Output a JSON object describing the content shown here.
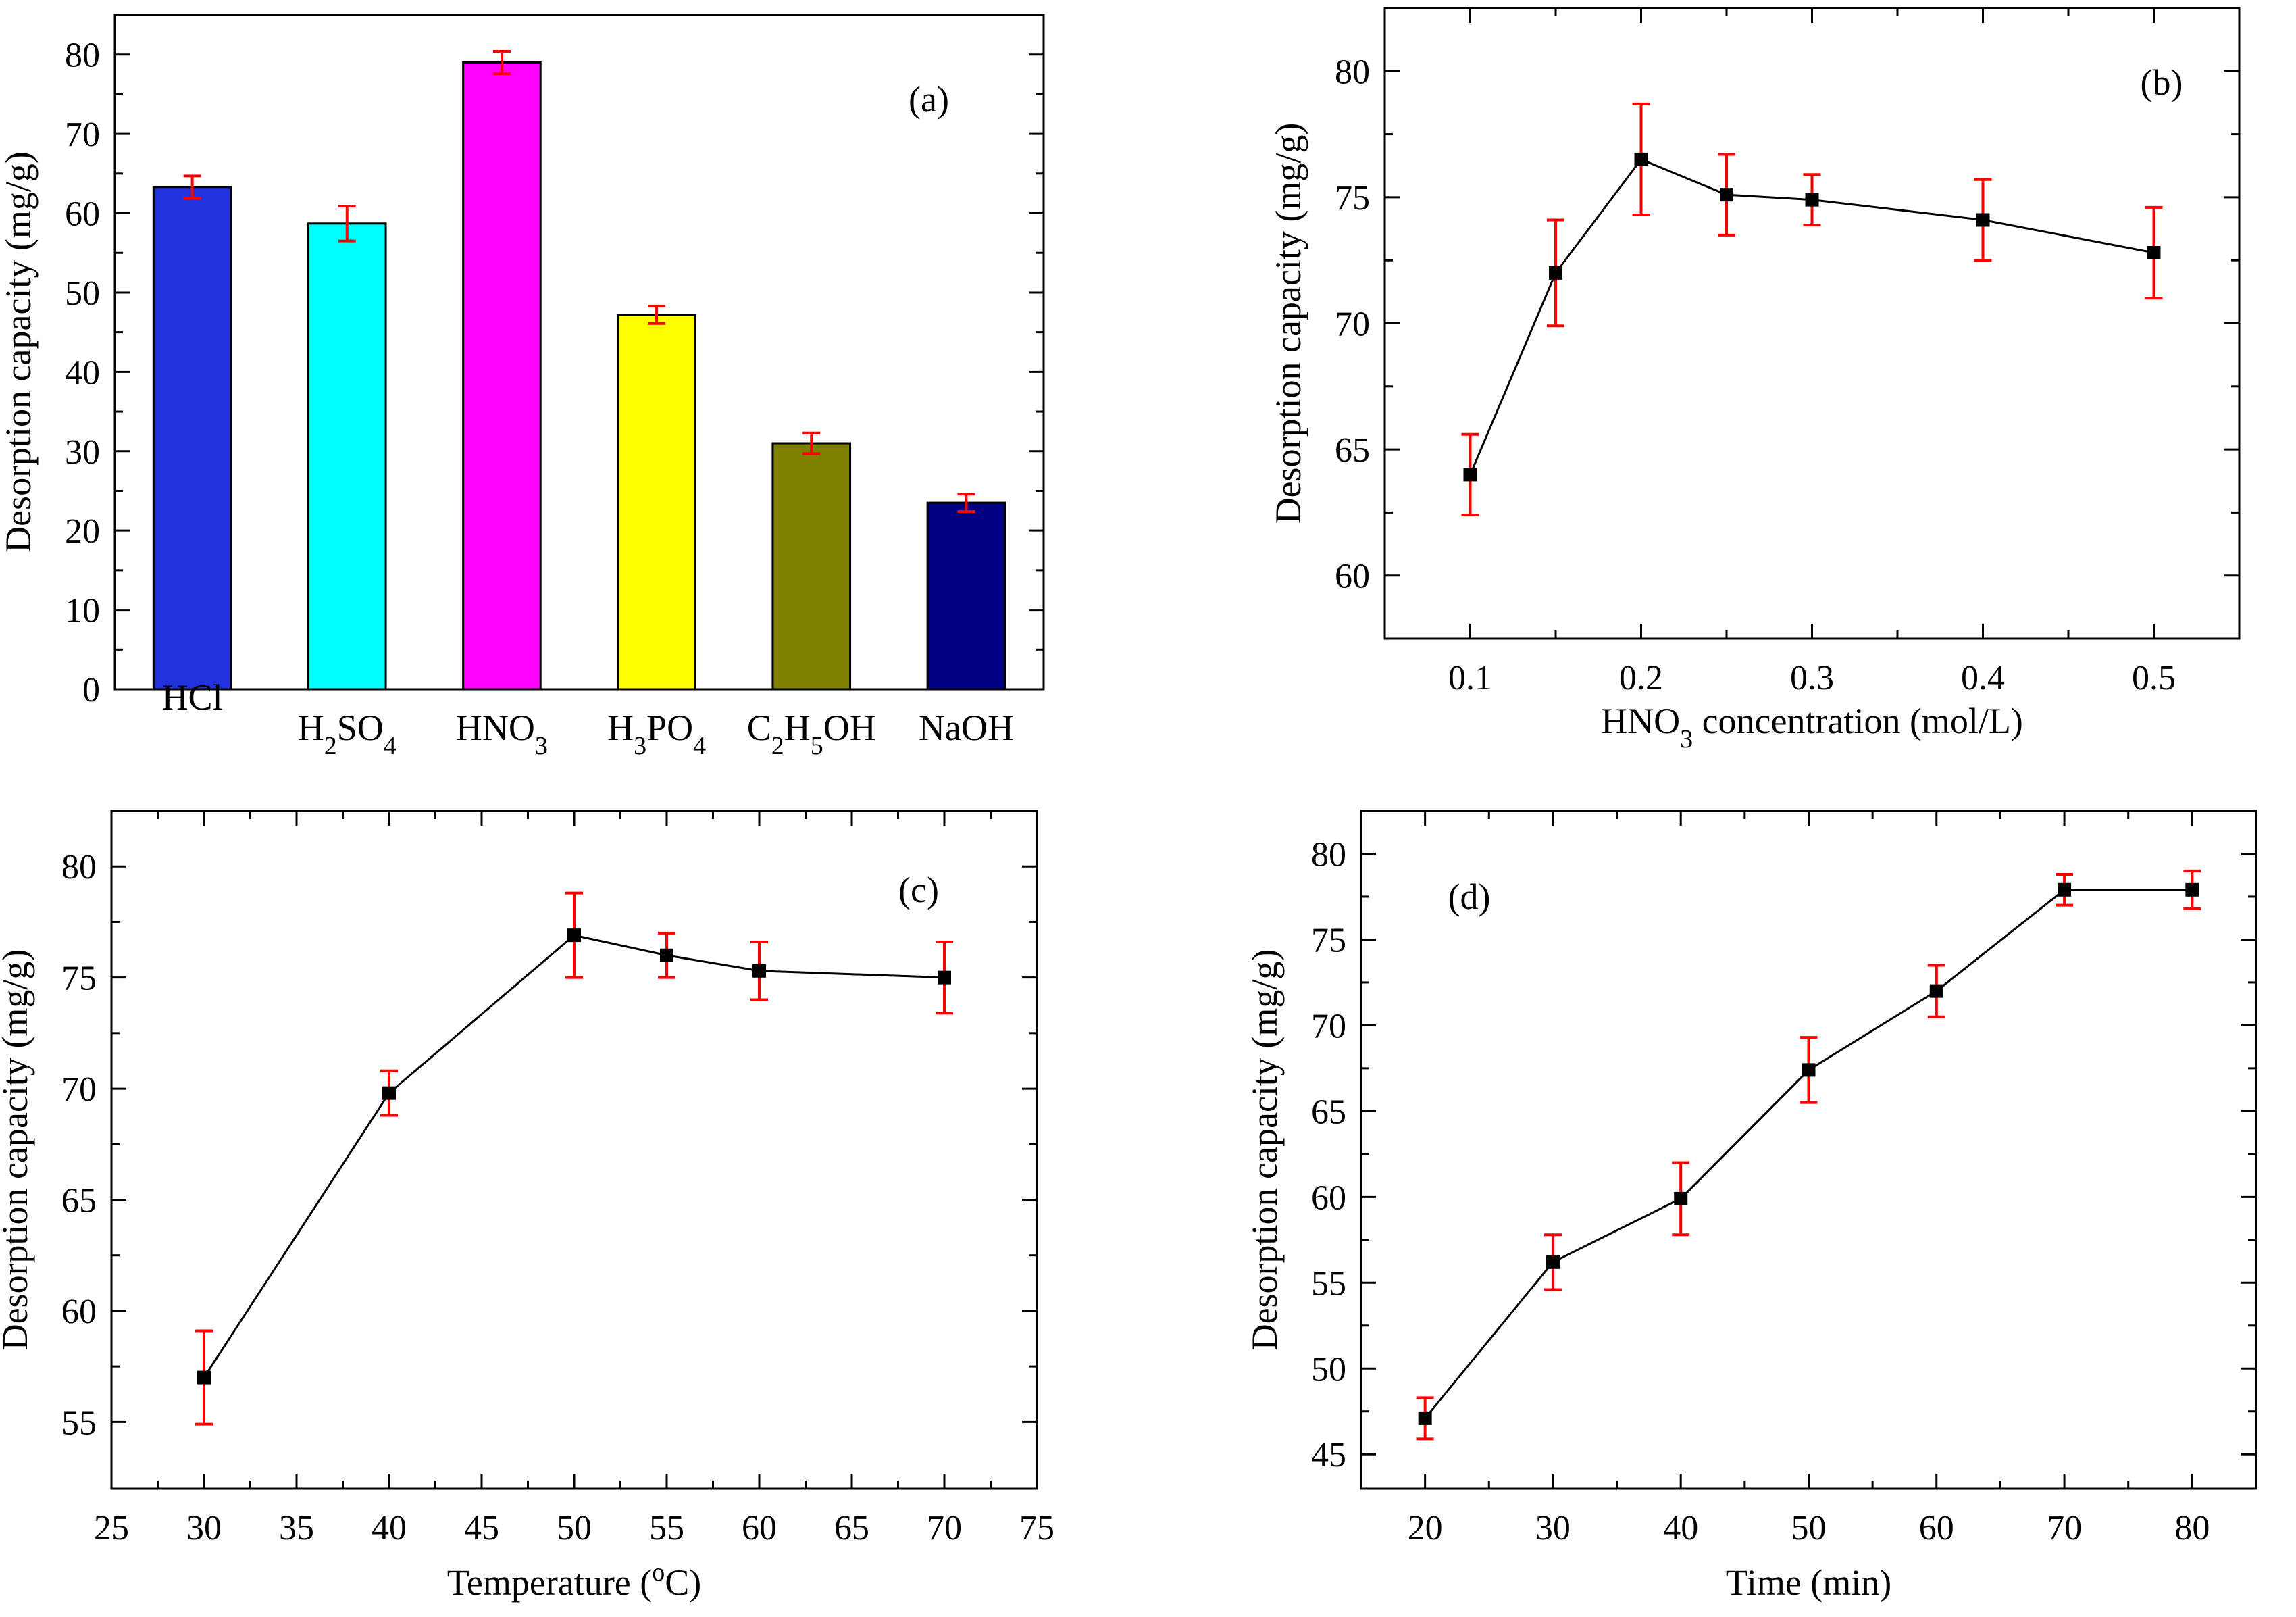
{
  "chart_data": [
    {
      "id": "a",
      "type": "bar",
      "panel_label": "(a)",
      "xlabel": "",
      "ylabel": "Desorption capacity (mg/g)",
      "ylim": [
        0,
        85
      ],
      "yticks": [
        0,
        10,
        20,
        30,
        40,
        50,
        60,
        70,
        80
      ],
      "categories": [
        {
          "label": "HCl",
          "base": "HCl",
          "parts": [
            [
              "HCl",
              false
            ]
          ]
        },
        {
          "label": "H2SO4",
          "parts": [
            [
              "H",
              false
            ],
            [
              "2",
              true
            ],
            [
              "SO",
              false
            ],
            [
              "4",
              true
            ]
          ]
        },
        {
          "label": "HNO3",
          "parts": [
            [
              "HNO",
              false
            ],
            [
              "3",
              true
            ]
          ]
        },
        {
          "label": "H3PO4",
          "parts": [
            [
              "H",
              false
            ],
            [
              "3",
              true
            ],
            [
              "PO",
              false
            ],
            [
              "4",
              true
            ]
          ]
        },
        {
          "label": "C2H5OH",
          "parts": [
            [
              "C",
              false
            ],
            [
              "2",
              true
            ],
            [
              "H",
              false
            ],
            [
              "5",
              true
            ],
            [
              "OH",
              false
            ]
          ]
        },
        {
          "label": "NaOH",
          "parts": [
            [
              "NaOH",
              false
            ]
          ]
        }
      ],
      "values": [
        63.3,
        58.7,
        79.0,
        47.2,
        31.0,
        23.5
      ],
      "errors": [
        1.4,
        2.2,
        1.4,
        1.1,
        1.3,
        1.1
      ],
      "colors": [
        "#2233dd",
        "#00ffff",
        "#ff00ff",
        "#ffff00",
        "#808000",
        "#000080"
      ]
    },
    {
      "id": "b",
      "type": "line",
      "panel_label": "(b)",
      "xlabel_parts": [
        [
          "HNO",
          false
        ],
        [
          "3",
          true
        ],
        [
          " concentration (mol/L)",
          false
        ]
      ],
      "ylabel": "Desorption capacity (mg/g)",
      "xlim": [
        0.05,
        0.55
      ],
      "ylim": [
        57.5,
        82.5
      ],
      "xticks": [
        "0.1",
        "0.2",
        "0.3",
        "0.4",
        "0.5"
      ],
      "xtick_values": [
        0.1,
        0.2,
        0.3,
        0.4,
        0.5
      ],
      "yticks": [
        60,
        65,
        70,
        75,
        80
      ],
      "x": [
        0.1,
        0.15,
        0.2,
        0.25,
        0.3,
        0.4,
        0.5
      ],
      "y": [
        64.0,
        72.0,
        76.5,
        75.1,
        74.9,
        74.1,
        72.8
      ],
      "errors": [
        1.6,
        2.1,
        2.2,
        1.6,
        1.0,
        1.6,
        1.8
      ]
    },
    {
      "id": "c",
      "type": "line",
      "panel_label": "(c)",
      "xlabel_parts": [
        [
          "Temperature (",
          false
        ],
        [
          "o",
          "sup"
        ],
        [
          "C)",
          false
        ]
      ],
      "ylabel": "Desorption capacity (mg/g)",
      "xlim": [
        25,
        75
      ],
      "ylim": [
        52,
        82.5
      ],
      "xticks": [
        "25",
        "30",
        "35",
        "40",
        "45",
        "50",
        "55",
        "60",
        "65",
        "70",
        "75"
      ],
      "xtick_values": [
        25,
        30,
        35,
        40,
        45,
        50,
        55,
        60,
        65,
        70,
        75
      ],
      "yticks": [
        55,
        60,
        65,
        70,
        75,
        80
      ],
      "x": [
        30,
        40,
        50,
        55,
        60,
        70
      ],
      "y": [
        57.0,
        69.8,
        76.9,
        76.0,
        75.3,
        75.0
      ],
      "errors": [
        2.1,
        1.0,
        1.9,
        1.0,
        1.3,
        1.6
      ]
    },
    {
      "id": "d",
      "type": "line",
      "panel_label": "(d)",
      "xlabel_parts": [
        [
          "Time (min)",
          false
        ]
      ],
      "ylabel": "Desorption capacity (mg/g)",
      "xlim": [
        15,
        85
      ],
      "ylim": [
        43,
        82.5
      ],
      "xticks": [
        "20",
        "30",
        "40",
        "50",
        "60",
        "70",
        "80"
      ],
      "xtick_values": [
        20,
        30,
        40,
        50,
        60,
        70,
        80
      ],
      "yticks": [
        45,
        50,
        55,
        60,
        65,
        70,
        75,
        80
      ],
      "x": [
        20,
        30,
        40,
        50,
        60,
        70,
        80
      ],
      "y": [
        47.1,
        56.2,
        59.9,
        67.4,
        72.0,
        77.9,
        77.9
      ],
      "errors": [
        1.2,
        1.6,
        2.1,
        1.9,
        1.5,
        0.9,
        1.1
      ]
    }
  ]
}
